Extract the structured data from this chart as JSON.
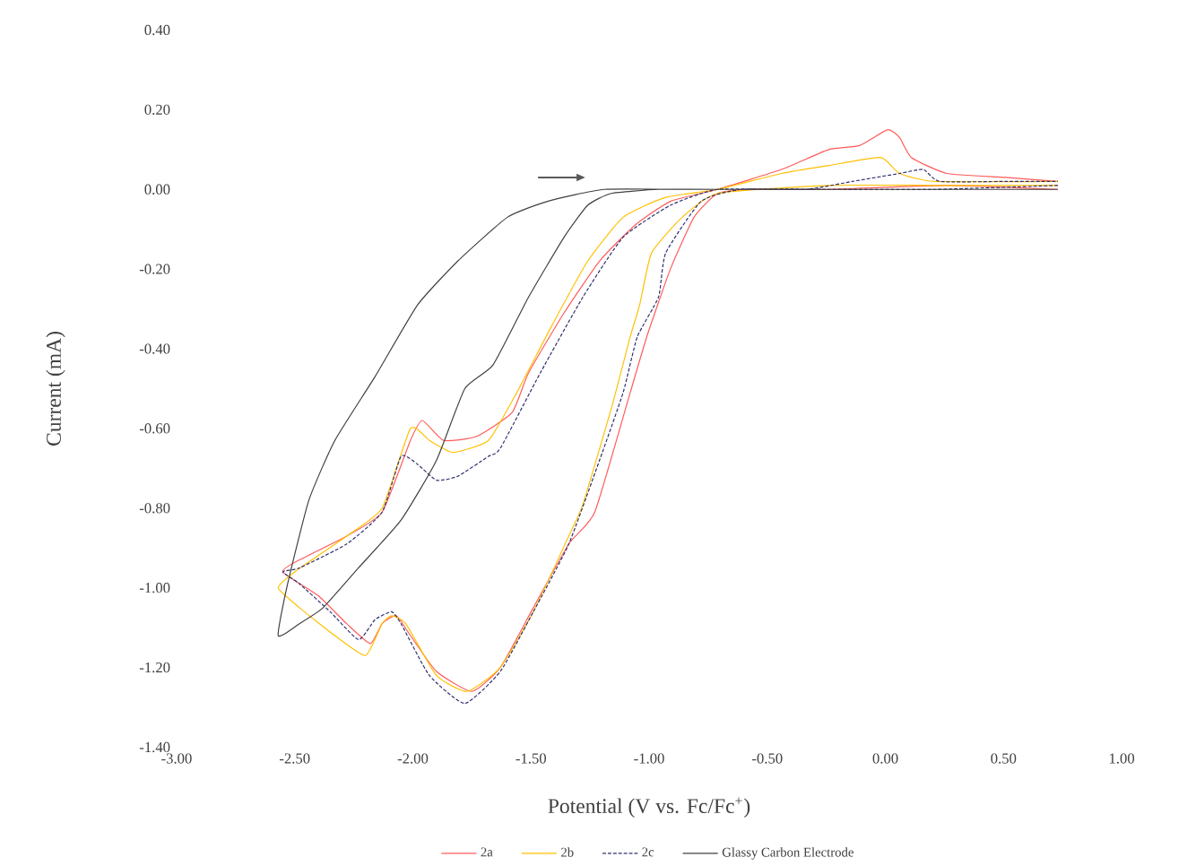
{
  "chart_data": {
    "type": "line",
    "xlabel": "Potential (V vs. Fc/Fc$^{+}$)",
    "ylabel": "Current (mA)",
    "xlim": [
      -3,
      1
    ],
    "ylim": [
      -1.4,
      0.4
    ],
    "xticks": [
      {
        "value": -3,
        "label": "-3.00"
      },
      {
        "value": -2.5,
        "label": "-2.50"
      },
      {
        "value": -2,
        "label": "-2.00"
      },
      {
        "value": -1.5,
        "label": "-1.50"
      },
      {
        "value": -1,
        "label": "-1.00"
      },
      {
        "value": -0.5,
        "label": "-0.50"
      },
      {
        "value": 0,
        "label": "0.00"
      },
      {
        "value": 0.5,
        "label": "0.50"
      },
      {
        "value": 1,
        "label": "1.00"
      }
    ],
    "yticks": [
      {
        "value": -1.4,
        "label": "-1.40"
      },
      {
        "value": -1.2,
        "label": "-1.20"
      },
      {
        "value": -1,
        "label": "-1.00"
      },
      {
        "value": -0.8,
        "label": "-0.80"
      },
      {
        "value": -0.6,
        "label": "-0.60"
      },
      {
        "value": -0.4,
        "label": "-0.40"
      },
      {
        "value": -0.2,
        "label": "-0.20"
      },
      {
        "value": 0,
        "label": "0.00"
      },
      {
        "value": 0.2,
        "label": "0.20"
      },
      {
        "value": 0.4,
        "label": "0.40"
      }
    ],
    "legend": "bottom",
    "grid": false,
    "series": [
      {
        "name": "2a",
        "color": "#ff5a5a",
        "line_style": "solid",
        "x": [
          0.73,
          0.26,
          -0.24,
          -0.56,
          -0.71,
          -0.81,
          -0.91,
          -1.01,
          -1.08,
          -1.23,
          -1.34,
          -1.49,
          -1.63,
          -1.75,
          -1.9,
          -2.01,
          -2.07,
          -2.13,
          -2.18,
          -2.28,
          -2.4,
          -2.55,
          -2.48,
          -2.28,
          -2.13,
          -2.01,
          -1.96,
          -1.87,
          -1.73,
          -1.58,
          -1.51,
          -1.36,
          -1.21,
          -1.06,
          -0.91,
          -0.71,
          -0.44,
          -0.24,
          -0.11,
          0.01,
          0.06,
          0.11,
          0.26,
          0.51,
          0.73
        ],
        "values": [
          0.0,
          0.01,
          0.0,
          0.0,
          -0.01,
          -0.07,
          -0.2,
          -0.37,
          -0.51,
          -0.81,
          -0.89,
          -1.05,
          -1.2,
          -1.26,
          -1.21,
          -1.12,
          -1.07,
          -1.09,
          -1.14,
          -1.09,
          -1.02,
          -0.96,
          -0.93,
          -0.87,
          -0.81,
          -0.63,
          -0.58,
          -0.63,
          -0.62,
          -0.56,
          -0.46,
          -0.31,
          -0.18,
          -0.09,
          -0.03,
          0.0,
          0.05,
          0.1,
          0.11,
          0.15,
          0.13,
          0.08,
          0.04,
          0.03,
          0.02
        ]
      },
      {
        "name": "2b",
        "color": "#ffc000",
        "line_style": "solid",
        "x": [
          0.73,
          0.21,
          -0.24,
          -0.71,
          -0.86,
          -0.99,
          -1.04,
          -1.08,
          -1.16,
          -1.28,
          -1.34,
          -1.49,
          -1.63,
          -1.77,
          -1.9,
          -2.03,
          -2.09,
          -2.13,
          -2.2,
          -2.33,
          -2.48,
          -2.57,
          -2.5,
          -2.28,
          -2.13,
          -2.01,
          -1.93,
          -1.83,
          -1.68,
          -1.56,
          -1.41,
          -1.26,
          -1.11,
          -0.93,
          -0.71,
          -0.44,
          -0.24,
          -0.02,
          0.06,
          0.21,
          0.73
        ],
        "values": [
          0.01,
          0.01,
          0.01,
          -0.01,
          -0.07,
          -0.16,
          -0.29,
          -0.37,
          -0.55,
          -0.79,
          -0.87,
          -1.06,
          -1.2,
          -1.26,
          -1.22,
          -1.09,
          -1.07,
          -1.09,
          -1.17,
          -1.12,
          -1.05,
          -1.0,
          -0.96,
          -0.87,
          -0.8,
          -0.6,
          -0.63,
          -0.66,
          -0.63,
          -0.51,
          -0.34,
          -0.18,
          -0.07,
          -0.02,
          0.0,
          0.04,
          0.06,
          0.08,
          0.04,
          0.02,
          0.02
        ]
      },
      {
        "name": "2c",
        "color": "#2e2e6e",
        "line_style": "dashed",
        "x": [
          0.73,
          0.21,
          -0.24,
          -0.61,
          -0.78,
          -0.93,
          -0.96,
          -1.05,
          -1.11,
          -1.21,
          -1.34,
          -1.49,
          -1.63,
          -1.78,
          -1.93,
          -2.05,
          -2.09,
          -2.16,
          -2.23,
          -2.35,
          -2.48,
          -2.55,
          -2.48,
          -2.28,
          -2.13,
          -2.05,
          -1.98,
          -1.9,
          -1.81,
          -1.68,
          -1.63,
          -1.46,
          -1.28,
          -1.11,
          -0.91,
          -0.71,
          -0.34,
          -0.14,
          0.06,
          0.16,
          0.23,
          0.51,
          0.73
        ],
        "values": [
          0.01,
          0.0,
          0.0,
          0.0,
          -0.03,
          -0.16,
          -0.27,
          -0.37,
          -0.51,
          -0.68,
          -0.89,
          -1.06,
          -1.21,
          -1.29,
          -1.22,
          -1.09,
          -1.06,
          -1.08,
          -1.13,
          -1.06,
          -0.99,
          -0.96,
          -0.95,
          -0.89,
          -0.81,
          -0.67,
          -0.69,
          -0.73,
          -0.72,
          -0.67,
          -0.65,
          -0.46,
          -0.27,
          -0.12,
          -0.04,
          0.0,
          0.0,
          0.02,
          0.04,
          0.05,
          0.02,
          0.02,
          0.02
        ]
      },
      {
        "name": "Glassy Carbon Electrode",
        "color": "#404040",
        "line_style": "solid",
        "x": [
          0.73,
          -0.69,
          -0.96,
          -1.16,
          -1.26,
          -1.36,
          -1.51,
          -1.66,
          -1.78,
          -1.9,
          -2.05,
          -2.23,
          -2.38,
          -2.48,
          -2.57,
          -2.53,
          -2.44,
          -2.33,
          -2.16,
          -1.98,
          -1.81,
          -1.6,
          -1.43,
          -1.19,
          -0.81,
          0.72
        ],
        "values": [
          0.0,
          0.0,
          0.0,
          -0.01,
          -0.04,
          -0.12,
          -0.27,
          -0.44,
          -0.5,
          -0.68,
          -0.83,
          -0.95,
          -1.05,
          -1.09,
          -1.12,
          -0.99,
          -0.78,
          -0.63,
          -0.47,
          -0.29,
          -0.18,
          -0.07,
          -0.03,
          0.0,
          0.0,
          0.0
        ]
      }
    ]
  }
}
